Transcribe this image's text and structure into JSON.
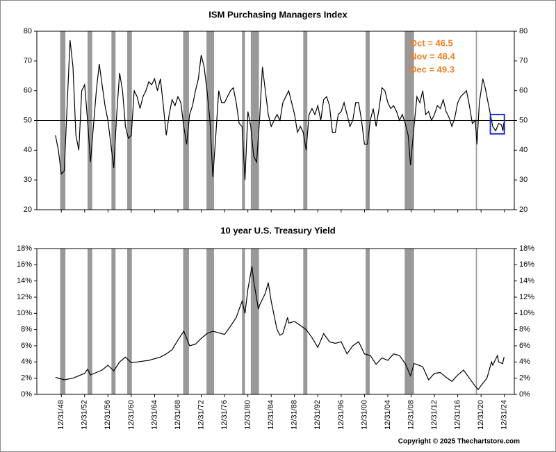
{
  "chart_data": [
    {
      "type": "line",
      "title": "ISM Purchasing Managers Index",
      "color": "#000000",
      "xlim": [
        1944.8,
        2026.7
      ],
      "ylim": [
        20,
        80
      ],
      "yticks": [
        20,
        30,
        40,
        50,
        60,
        70,
        80
      ],
      "hline": 50,
      "annotations": [
        "Oct =  46.5",
        "Nov = 48.4",
        "Dec = 49.3"
      ],
      "annotation_color": "#f07f1e",
      "highlight_box": {
        "x": [
          2022.6,
          2025.0
        ],
        "y": [
          45.5,
          52
        ],
        "color": "#1f2fd0"
      },
      "x": [
        1948.0,
        1948.5,
        1949.0,
        1949.5,
        1950.0,
        1950.5,
        1951.0,
        1951.5,
        1952.0,
        1952.5,
        1953.0,
        1953.5,
        1954.0,
        1954.5,
        1955.0,
        1955.5,
        1956.0,
        1956.5,
        1957.0,
        1957.5,
        1958.0,
        1958.5,
        1959.0,
        1959.5,
        1960.0,
        1960.5,
        1961.0,
        1961.5,
        1962.0,
        1962.5,
        1963.0,
        1963.5,
        1964.0,
        1964.5,
        1965.0,
        1965.5,
        1966.0,
        1966.5,
        1967.0,
        1967.5,
        1968.0,
        1968.5,
        1969.0,
        1969.5,
        1970.0,
        1970.5,
        1971.0,
        1971.5,
        1972.0,
        1972.5,
        1973.0,
        1973.5,
        1974.0,
        1974.5,
        1975.0,
        1975.5,
        1976.0,
        1976.5,
        1977.0,
        1977.5,
        1978.0,
        1978.5,
        1979.0,
        1979.5,
        1980.0,
        1980.5,
        1981.0,
        1981.5,
        1982.0,
        1982.5,
        1983.0,
        1983.5,
        1984.0,
        1984.5,
        1985.0,
        1985.5,
        1986.0,
        1986.5,
        1987.0,
        1987.5,
        1988.0,
        1988.5,
        1989.0,
        1989.5,
        1990.0,
        1990.5,
        1991.0,
        1991.5,
        1992.0,
        1992.5,
        1993.0,
        1993.5,
        1994.0,
        1994.5,
        1995.0,
        1995.5,
        1996.0,
        1996.5,
        1997.0,
        1997.5,
        1998.0,
        1998.5,
        1999.0,
        1999.5,
        2000.0,
        2000.5,
        2001.0,
        2001.5,
        2002.0,
        2002.5,
        2003.0,
        2003.5,
        2004.0,
        2004.5,
        2005.0,
        2005.5,
        2006.0,
        2006.5,
        2007.0,
        2007.5,
        2008.0,
        2008.5,
        2008.9,
        2009.5,
        2010.0,
        2010.5,
        2011.0,
        2011.5,
        2012.0,
        2012.5,
        2013.0,
        2013.5,
        2014.0,
        2014.5,
        2015.0,
        2015.5,
        2016.0,
        2016.5,
        2017.0,
        2017.5,
        2018.0,
        2018.5,
        2019.0,
        2019.5,
        2020.0,
        2020.3,
        2020.7,
        2021.0,
        2021.3,
        2021.7,
        2022.0,
        2022.5,
        2023.0,
        2023.5,
        2024.0,
        2024.5,
        2024.75,
        2024.83,
        2024.92
      ],
      "values": [
        45,
        40,
        32,
        33,
        55,
        77,
        68,
        45,
        40,
        60,
        62,
        50,
        36,
        48,
        60,
        69,
        62,
        55,
        50,
        42,
        34,
        52,
        66,
        60,
        48,
        44,
        45,
        60,
        58,
        54,
        58,
        60,
        63,
        62,
        64,
        60,
        64,
        55,
        45,
        52,
        57,
        55,
        58,
        56,
        48,
        42,
        52,
        55,
        60,
        64,
        72,
        68,
        60,
        50,
        31,
        45,
        60,
        56,
        56,
        58,
        60,
        61,
        56,
        49,
        48,
        30,
        53,
        48,
        38,
        36,
        50,
        68,
        60,
        52,
        48,
        50,
        52,
        50,
        56,
        58,
        60,
        56,
        52,
        46,
        48,
        46,
        40,
        52,
        54,
        52,
        55,
        50,
        57,
        58,
        55,
        46,
        46,
        52,
        53,
        56,
        52,
        48,
        50,
        56,
        56,
        50,
        42,
        42,
        50,
        54,
        48,
        54,
        61,
        60,
        56,
        54,
        55,
        53,
        50,
        52,
        49,
        45,
        35,
        48,
        58,
        56,
        60,
        52,
        53,
        50,
        52,
        55,
        54,
        57,
        53,
        51,
        48,
        51,
        56,
        58,
        59,
        60,
        55,
        49,
        50,
        42,
        56,
        60,
        64,
        61,
        58,
        53,
        48,
        46.5,
        49,
        48.5,
        46.5,
        48.4,
        49.3
      ]
    },
    {
      "type": "line",
      "title": "10 year U.S. Treasury Yield",
      "color": "#000000",
      "xlim": [
        1944.8,
        2026.7
      ],
      "ylim": [
        0,
        18
      ],
      "yticks": [
        {
          "value": 0,
          "label": "0%"
        },
        {
          "value": 2,
          "label": "2%"
        },
        {
          "value": 4,
          "label": "4%"
        },
        {
          "value": 6,
          "label": "6%"
        },
        {
          "value": 8,
          "label": "8%"
        },
        {
          "value": 10,
          "label": "10%"
        },
        {
          "value": 12,
          "label": "12%"
        },
        {
          "value": 14,
          "label": "14%"
        },
        {
          "value": 16,
          "label": "16%"
        },
        {
          "value": 18,
          "label": "18%"
        }
      ],
      "xticks": [
        {
          "value": 1949,
          "label": "12/31/48"
        },
        {
          "value": 1953,
          "label": "12/31/52"
        },
        {
          "value": 1957,
          "label": "12/31/56"
        },
        {
          "value": 1961,
          "label": "12/31/60"
        },
        {
          "value": 1965,
          "label": "12/31/64"
        },
        {
          "value": 1969,
          "label": "12/31/68"
        },
        {
          "value": 1973,
          "label": "12/31/72"
        },
        {
          "value": 1977,
          "label": "12/31/76"
        },
        {
          "value": 1981,
          "label": "12/31/80"
        },
        {
          "value": 1985,
          "label": "12/31/84"
        },
        {
          "value": 1989,
          "label": "12/31/88"
        },
        {
          "value": 1993,
          "label": "12/31/92"
        },
        {
          "value": 1997,
          "label": "12/31/96"
        },
        {
          "value": 2001,
          "label": "12/31/00"
        },
        {
          "value": 2005,
          "label": "12/31/04"
        },
        {
          "value": 2009,
          "label": "12/31/08"
        },
        {
          "value": 2013,
          "label": "12/31/12"
        },
        {
          "value": 2017,
          "label": "12/31/16"
        },
        {
          "value": 2021,
          "label": "12/31/20"
        },
        {
          "value": 2025,
          "label": "12/31/24"
        }
      ],
      "x": [
        1948.0,
        1949.5,
        1951.0,
        1953.0,
        1953.5,
        1954.0,
        1955.0,
        1956.0,
        1957.0,
        1958.0,
        1959.0,
        1960.0,
        1961.0,
        1962.0,
        1964.0,
        1966.0,
        1967.0,
        1968.0,
        1969.0,
        1970.0,
        1971.0,
        1972.0,
        1973.0,
        1974.0,
        1975.0,
        1976.0,
        1977.0,
        1978.0,
        1979.0,
        1980.0,
        1980.5,
        1981.0,
        1981.7,
        1982.0,
        1982.8,
        1983.0,
        1984.0,
        1984.5,
        1985.0,
        1986.0,
        1986.5,
        1987.0,
        1987.8,
        1988.0,
        1989.0,
        1990.0,
        1991.0,
        1992.0,
        1993.0,
        1994.0,
        1995.0,
        1996.0,
        1997.0,
        1998.0,
        1999.0,
        2000.0,
        2001.0,
        2002.0,
        2003.0,
        2004.0,
        2005.0,
        2006.0,
        2007.0,
        2008.0,
        2008.9,
        2009.5,
        2010.0,
        2011.0,
        2012.0,
        2013.0,
        2014.0,
        2015.0,
        2016.0,
        2017.0,
        2018.0,
        2019.0,
        2020.0,
        2020.5,
        2021.0,
        2022.0,
        2022.8,
        2023.0,
        2023.8,
        2024.0,
        2024.7,
        2024.95
      ],
      "values": [
        2.1,
        1.8,
        2.0,
        2.6,
        3.1,
        2.4,
        2.7,
        3.0,
        3.6,
        2.9,
        4.0,
        4.6,
        3.9,
        4.0,
        4.2,
        4.6,
        5.0,
        5.5,
        6.7,
        7.8,
        6.0,
        6.2,
        6.9,
        7.5,
        7.8,
        7.6,
        7.4,
        8.4,
        9.5,
        11.5,
        10.0,
        13.0,
        15.8,
        14.0,
        10.5,
        11.0,
        12.5,
        13.8,
        11.5,
        8.0,
        7.3,
        7.5,
        9.5,
        8.8,
        9.0,
        8.5,
        8.0,
        7.0,
        5.8,
        7.5,
        6.5,
        6.3,
        6.5,
        5.0,
        6.0,
        6.5,
        5.0,
        4.8,
        3.7,
        4.5,
        4.2,
        5.0,
        4.8,
        3.8,
        2.3,
        3.8,
        3.7,
        3.4,
        1.8,
        2.6,
        2.7,
        2.1,
        1.6,
        2.4,
        3.0,
        2.0,
        1.0,
        0.6,
        1.1,
        2.0,
        4.0,
        3.6,
        4.8,
        4.0,
        3.8,
        4.6
      ]
    }
  ],
  "recessions": [
    [
      1948.8,
      1949.7
    ],
    [
      1953.5,
      1954.3
    ],
    [
      1957.6,
      1958.3
    ],
    [
      1960.3,
      1961.1
    ],
    [
      1969.9,
      1970.9
    ],
    [
      1973.9,
      1975.2
    ],
    [
      1980.0,
      1980.5
    ],
    [
      1981.5,
      1982.9
    ],
    [
      1990.5,
      1991.2
    ],
    [
      2001.2,
      2001.9
    ],
    [
      2007.9,
      2009.5
    ],
    [
      2020.1,
      2020.3
    ]
  ],
  "recession_color": "#999999",
  "footer": "Copyright © 2025 Thechartstore.com"
}
